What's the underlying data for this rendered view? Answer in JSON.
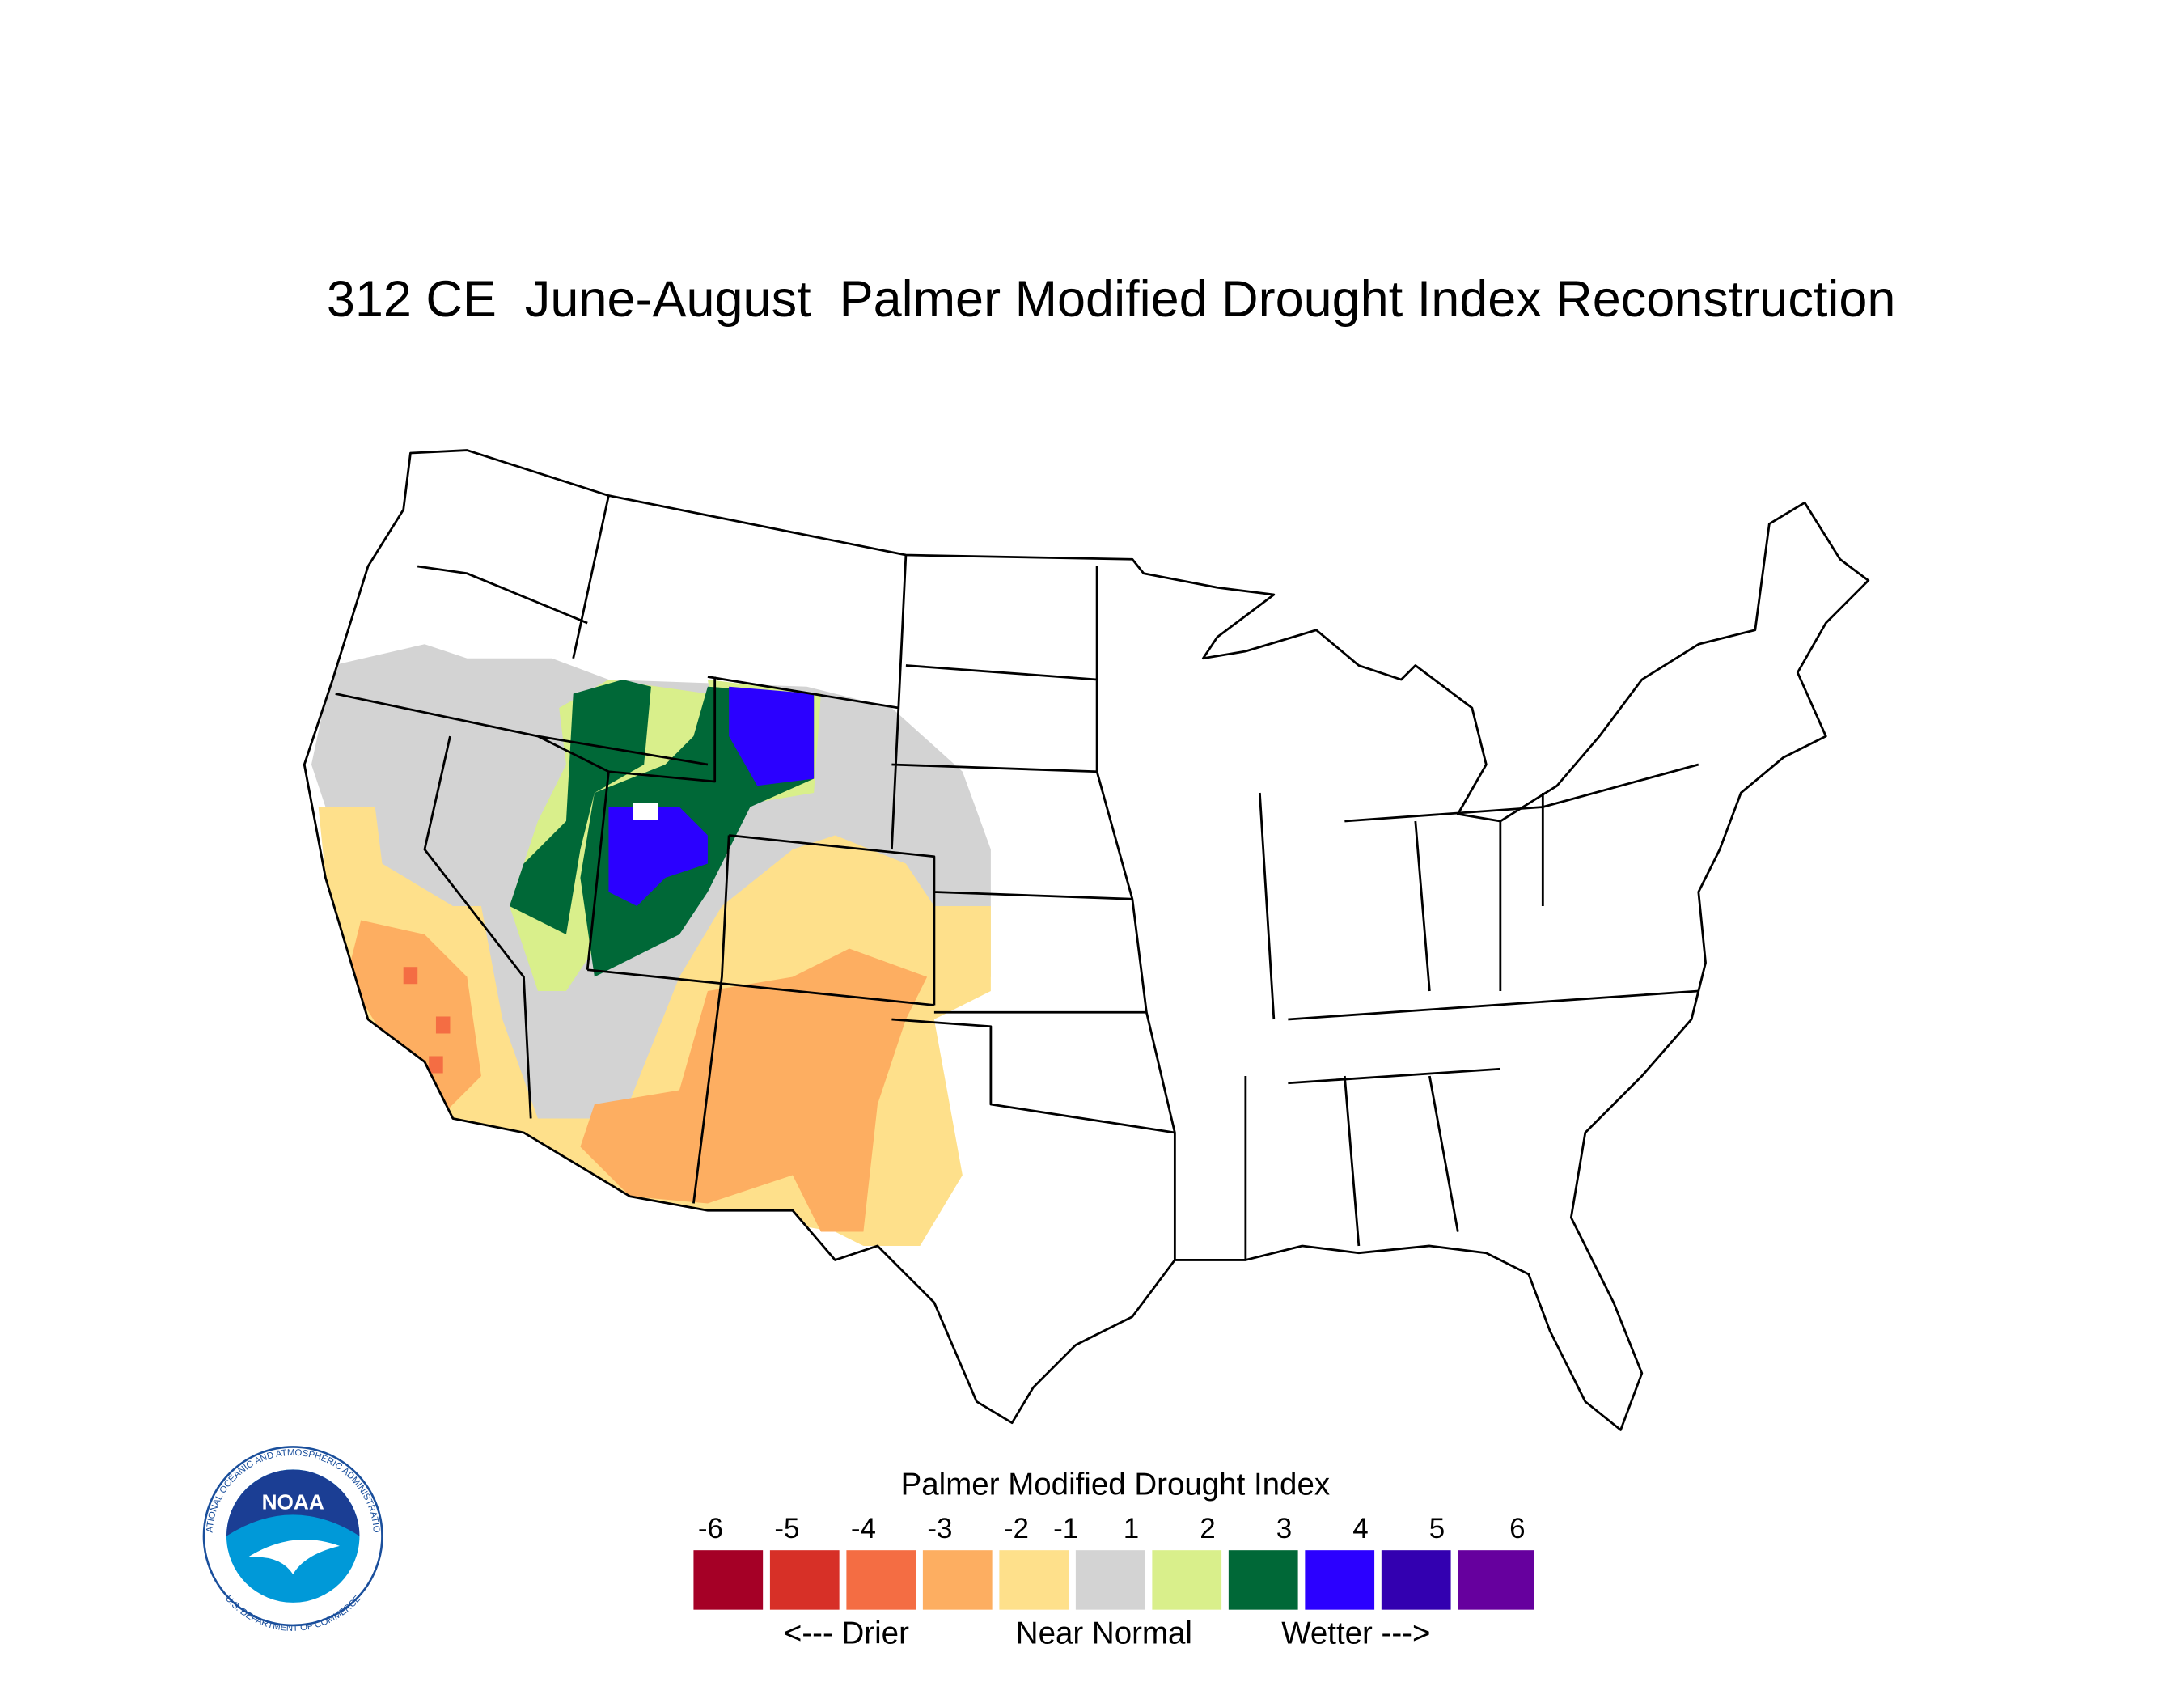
{
  "title": "312 CE  June-August  Palmer Modified Drought Index Reconstruction",
  "legend": {
    "title": "Palmer Modified Drought Index",
    "ticks": [
      -6,
      -5,
      -4,
      -3,
      -2,
      -1,
      1,
      2,
      3,
      4,
      5,
      6
    ],
    "colors": [
      "#a50026",
      "#d73027",
      "#f46d43",
      "#fdae61",
      "#fee08b",
      "#d3d3d3",
      "#d9ef8b",
      "#006837",
      "#2b00ff",
      "#3300b0",
      "#66009e"
    ],
    "labels": [
      "<--- Drier",
      "Near Normal",
      "Wetter --->"
    ]
  },
  "logo": {
    "text": "NOAA",
    "ring_top": "NATIONAL OCEANIC AND ATMOSPHERIC ADMINISTRATION",
    "ring_bottom": "U.S. DEPARTMENT OF COMMERCE"
  }
}
